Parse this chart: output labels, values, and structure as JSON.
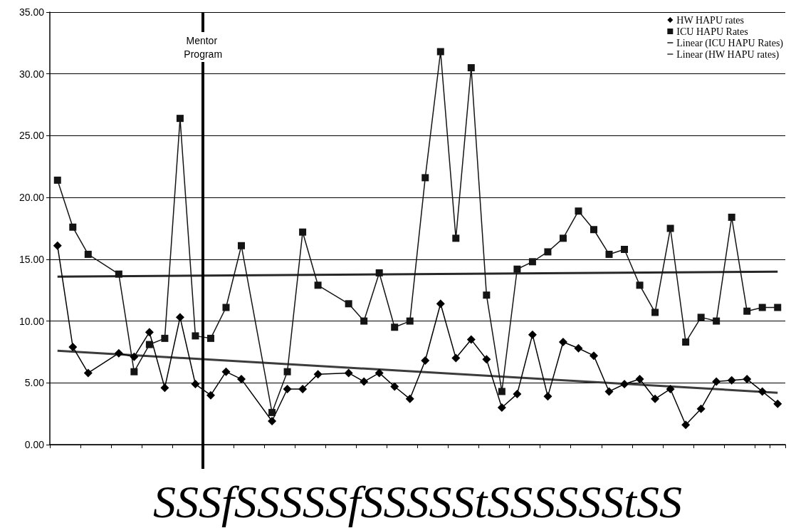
{
  "chart_data": {
    "type": "line",
    "xlabel": "SSSfSSSSSfSSSSStSSSSSStSS",
    "categories": [
      null,
      null,
      null,
      null,
      null,
      null,
      null,
      null,
      null,
      null,
      null,
      null,
      null,
      null,
      null,
      null,
      null,
      null,
      null,
      null,
      null,
      null,
      null,
      null,
      null,
      null,
      null,
      null,
      null,
      null,
      null,
      null,
      null,
      null,
      null,
      null,
      null,
      null,
      null,
      null,
      null,
      null,
      null,
      null,
      null,
      null,
      null,
      null
    ],
    "ylim": [
      0,
      35
    ],
    "yticks": [
      {
        "value": 0,
        "label": "0.00"
      },
      {
        "value": 5,
        "label": "5.00"
      },
      {
        "value": 10,
        "label": "10.00"
      },
      {
        "value": 15,
        "label": "15.00"
      },
      {
        "value": 20,
        "label": "20.00"
      },
      {
        "value": 25,
        "label": "25.00"
      },
      {
        "value": 30,
        "label": "30.00"
      },
      {
        "value": 35,
        "label": "35.00"
      }
    ],
    "grid": "y",
    "legend": "top right",
    "line_style": "solid",
    "annotations": [
      "Mentor Program"
    ],
    "series": [
      {
        "name": "HW HAPU rates",
        "color": "#000000",
        "marker": "diamond",
        "values": [
          16.1,
          7.9,
          5.8,
          null,
          7.4,
          7.1,
          9.1,
          4.6,
          10.3,
          4.9,
          4.0,
          5.9,
          5.3,
          null,
          1.9,
          4.5,
          4.5,
          5.7,
          null,
          5.8,
          5.1,
          5.8,
          4.7,
          3.7,
          6.8,
          11.4,
          7.0,
          8.5,
          6.9,
          3.0,
          4.1,
          8.9,
          3.9,
          8.3,
          7.8,
          7.2,
          4.3,
          4.9,
          5.3,
          3.7,
          4.5,
          1.6,
          2.9,
          5.1,
          5.2,
          5.3,
          4.3,
          3.3
        ]
      },
      {
        "name": "ICU HAPU Rates",
        "color": "#141414",
        "marker": "square",
        "values": [
          21.4,
          17.6,
          15.4,
          null,
          13.8,
          5.9,
          8.1,
          8.6,
          26.4,
          8.8,
          8.6,
          11.1,
          16.1,
          null,
          2.6,
          5.9,
          17.2,
          12.9,
          null,
          11.4,
          10.0,
          13.9,
          9.5,
          10.0,
          21.6,
          31.8,
          16.7,
          30.5,
          12.1,
          4.3,
          14.2,
          14.8,
          15.6,
          16.7,
          18.9,
          17.4,
          15.4,
          15.8,
          12.9,
          10.7,
          17.5,
          8.3,
          10.3,
          10.0,
          18.4,
          10.8,
          11.1,
          11.1
        ]
      },
      {
        "name": "Linear (ICU HAPU Rates)",
        "color": "#282828",
        "marker": "none",
        "values": [
          13.6,
          null,
          null,
          null,
          null,
          null,
          null,
          null,
          null,
          null,
          null,
          null,
          null,
          null,
          null,
          null,
          null,
          null,
          null,
          null,
          null,
          null,
          null,
          null,
          null,
          null,
          null,
          null,
          null,
          null,
          null,
          null,
          null,
          null,
          null,
          null,
          null,
          null,
          null,
          null,
          null,
          null,
          null,
          null,
          null,
          null,
          null,
          14.0
        ]
      },
      {
        "name": "Linear (HW HAPU rates)",
        "color": "#3c3c3c",
        "marker": "none",
        "values": [
          7.6,
          null,
          null,
          null,
          null,
          null,
          null,
          null,
          null,
          null,
          null,
          null,
          null,
          null,
          null,
          null,
          null,
          null,
          null,
          null,
          null,
          null,
          null,
          null,
          null,
          null,
          null,
          null,
          null,
          null,
          null,
          null,
          null,
          null,
          null,
          null,
          null,
          null,
          null,
          null,
          null,
          null,
          null,
          null,
          null,
          null,
          null,
          4.2
        ]
      }
    ]
  }
}
